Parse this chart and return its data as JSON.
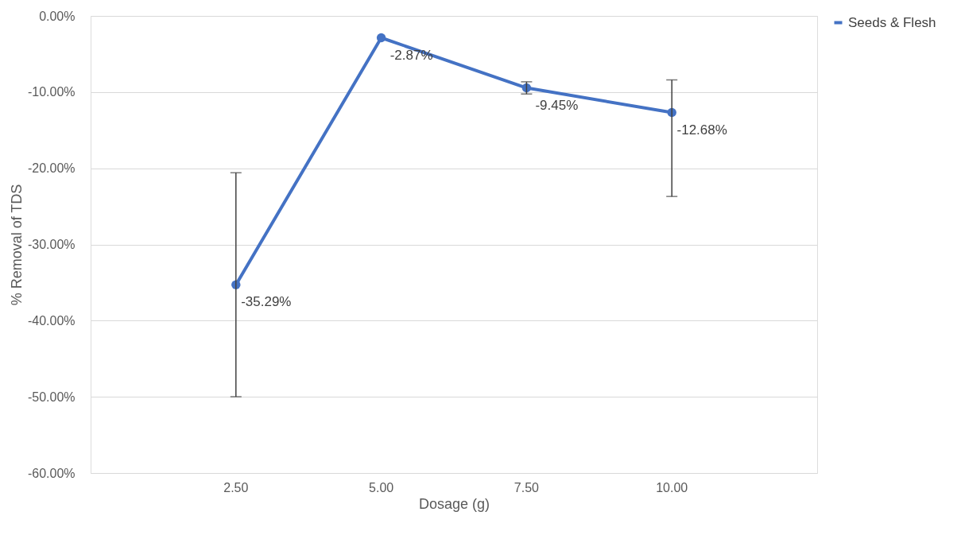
{
  "chart_data": {
    "type": "line",
    "categories": [
      "2.50",
      "5.00",
      "7.50",
      "10.00"
    ],
    "xlabel": "Dosage (g)",
    "ylabel": "% Removal of TDS",
    "series": [
      {
        "name": "Seeds & Flesh",
        "color": "#4472c4",
        "values": [
          -35.29,
          -2.87,
          -9.45,
          -12.68
        ],
        "errors": [
          14.7,
          null,
          0.8,
          [
            -23.7,
            -8.4
          ]
        ],
        "value_labels": [
          "-35.29%",
          "-2.87%",
          "-9.45%",
          "-12.68%"
        ]
      }
    ],
    "ylim": [
      -60,
      0
    ],
    "yticks": [
      {
        "value": -60,
        "label": "-60.00%"
      },
      {
        "value": -50,
        "label": "-50.00%"
      },
      {
        "value": -40,
        "label": "-40.00%"
      },
      {
        "value": -30,
        "label": "-30.00%"
      },
      {
        "value": -20,
        "label": "-20.00%"
      },
      {
        "value": -10,
        "label": "-10.00%"
      },
      {
        "value": 0,
        "label": "0.00%"
      }
    ],
    "grid": "y",
    "legend": "right",
    "marker": "circle",
    "line_style": "solid"
  }
}
